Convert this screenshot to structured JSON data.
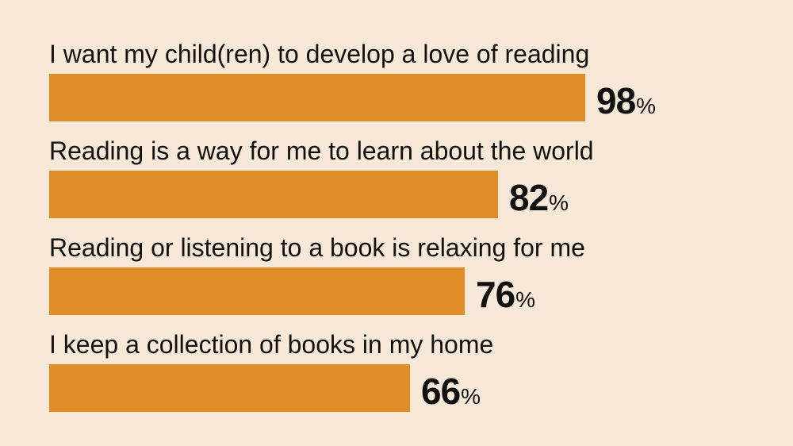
{
  "colors": {
    "background": "#f8e8d8",
    "bar": "#e08c27",
    "text": "#111111"
  },
  "chart_data": {
    "type": "bar",
    "orientation": "horizontal",
    "categories": [
      "I want my child(ren) to develop a love of reading",
      "Reading is a way for me to learn about the world",
      "Reading or listening to a book is relaxing for me",
      "I keep a collection of books in my home"
    ],
    "values": [
      98,
      82,
      76,
      66
    ],
    "value_labels": [
      "98",
      "82",
      "76",
      "66"
    ],
    "unit": "%",
    "xlim": [
      0,
      100
    ],
    "grid": false
  }
}
